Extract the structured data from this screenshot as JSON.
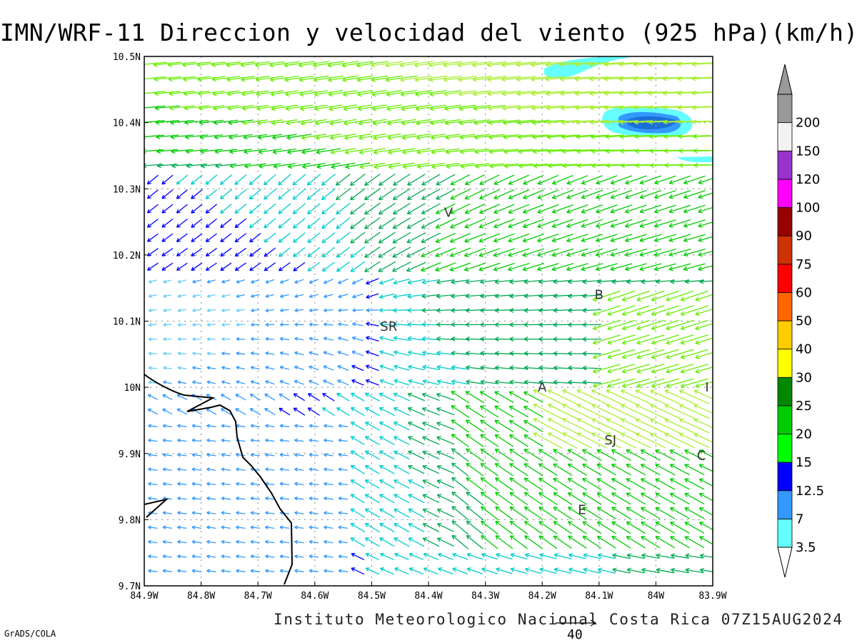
{
  "title": "IMN/WRF-11 Direccion y velocidad del viento (925 hPa)(km/h)",
  "footer": "Instituto Meteorologico Nacional Costa Rica 07Z15AUG2024",
  "software": "GrADS/COLA",
  "reference_vector": {
    "label": "40",
    "speed_kmh": 40
  },
  "map": {
    "lon_range": [
      -84.9,
      -83.9
    ],
    "lat_range": [
      9.7,
      10.5
    ],
    "x_tick_labels": [
      "84.9W",
      "84.8W",
      "84.7W",
      "84.6W",
      "84.5W",
      "84.4W",
      "84.3W",
      "84.2W",
      "84.1W",
      "84W",
      "83.9W"
    ],
    "y_tick_labels": [
      "10.5N",
      "10.4N",
      "10.3N",
      "10.2N",
      "10.1N",
      "10N",
      "9.9N",
      "9.8N",
      "9.7N"
    ],
    "grid": true,
    "towns": [
      {
        "label": "V",
        "lon": -84.365,
        "lat": 10.264
      },
      {
        "label": "SR",
        "lon": -84.47,
        "lat": 10.092
      },
      {
        "label": "B",
        "lon": -84.1,
        "lat": 10.14
      },
      {
        "label": "A",
        "lon": -84.2,
        "lat": 10.0
      },
      {
        "label": "I",
        "lon": -83.91,
        "lat": 10.0
      },
      {
        "label": "SJ",
        "lon": -84.08,
        "lat": 9.92
      },
      {
        "label": "C",
        "lon": -83.92,
        "lat": 9.897
      },
      {
        "label": "E",
        "lon": -84.13,
        "lat": 9.815
      }
    ]
  },
  "colorbar": {
    "labels": [
      "3.5",
      "7",
      "12.5",
      "15",
      "20",
      "25",
      "30",
      "40",
      "50",
      "60",
      "75",
      "90",
      "100",
      "120",
      "150",
      "200"
    ],
    "colors": [
      "#66ffff",
      "#3399ff",
      "#0000ff",
      "#00ff00",
      "#00cc00",
      "#008800",
      "#ffff00",
      "#ffcc00",
      "#ff6600",
      "#ff0000",
      "#cc3300",
      "#990000",
      "#ff00ff",
      "#9933cc",
      "#f2f2f2",
      "#999999"
    ]
  },
  "colors": {
    "coastline": "#000000",
    "gridline": "#999999",
    "shade_light": "#66ffff",
    "shade_mid": "#3399ff",
    "shade_dark": "#1c6fd6"
  }
}
